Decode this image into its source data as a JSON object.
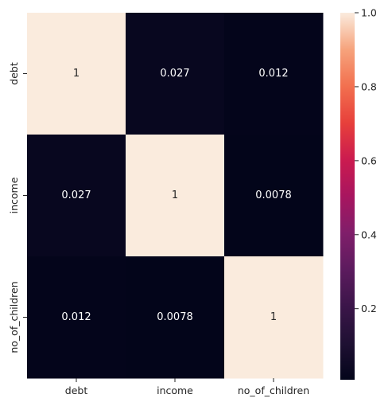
{
  "chart_data": {
    "type": "heatmap",
    "x_categories": [
      "debt",
      "income",
      "no_of_children"
    ],
    "y_categories": [
      "debt",
      "income",
      "no_of_children"
    ],
    "values": [
      [
        1,
        0.027,
        0.012
      ],
      [
        0.027,
        1,
        0.0078
      ],
      [
        0.012,
        0.0078,
        1
      ]
    ],
    "cell_labels": [
      [
        "1",
        "0.027",
        "0.012"
      ],
      [
        "0.027",
        "1",
        "0.0078"
      ],
      [
        "0.012",
        "0.0078",
        "1"
      ]
    ],
    "colorbar": {
      "range": [
        0.0078,
        1.0
      ],
      "ticks": [
        0.2,
        0.4,
        0.6,
        0.8,
        1.0
      ],
      "tick_labels": [
        "0.2",
        "0.4",
        "0.6",
        "0.8",
        "1.0"
      ],
      "colormap": "rocket"
    },
    "colors": {
      "low": "#0b0720",
      "high": "#faebdd"
    },
    "title": "",
    "xlabel": "",
    "ylabel": "",
    "grid": false,
    "legend": "colorbar-right"
  }
}
